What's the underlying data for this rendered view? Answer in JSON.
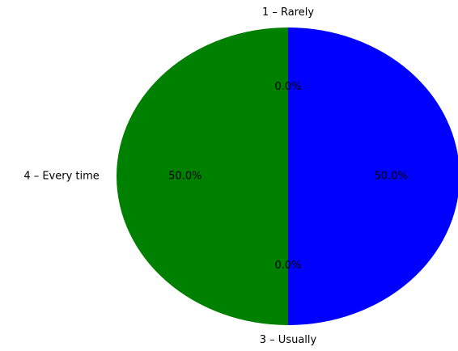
{
  "chart_data": {
    "type": "pie",
    "categories": [
      "1 – Rarely",
      "4 – Every time",
      "3 – Usually",
      null
    ],
    "values": [
      0,
      50,
      0,
      50
    ],
    "value_labels": [
      "0.0%",
      "50.0%",
      "0.0%",
      "50.0%"
    ],
    "colors": [
      null,
      "#008000",
      null,
      "#0000ff"
    ]
  }
}
